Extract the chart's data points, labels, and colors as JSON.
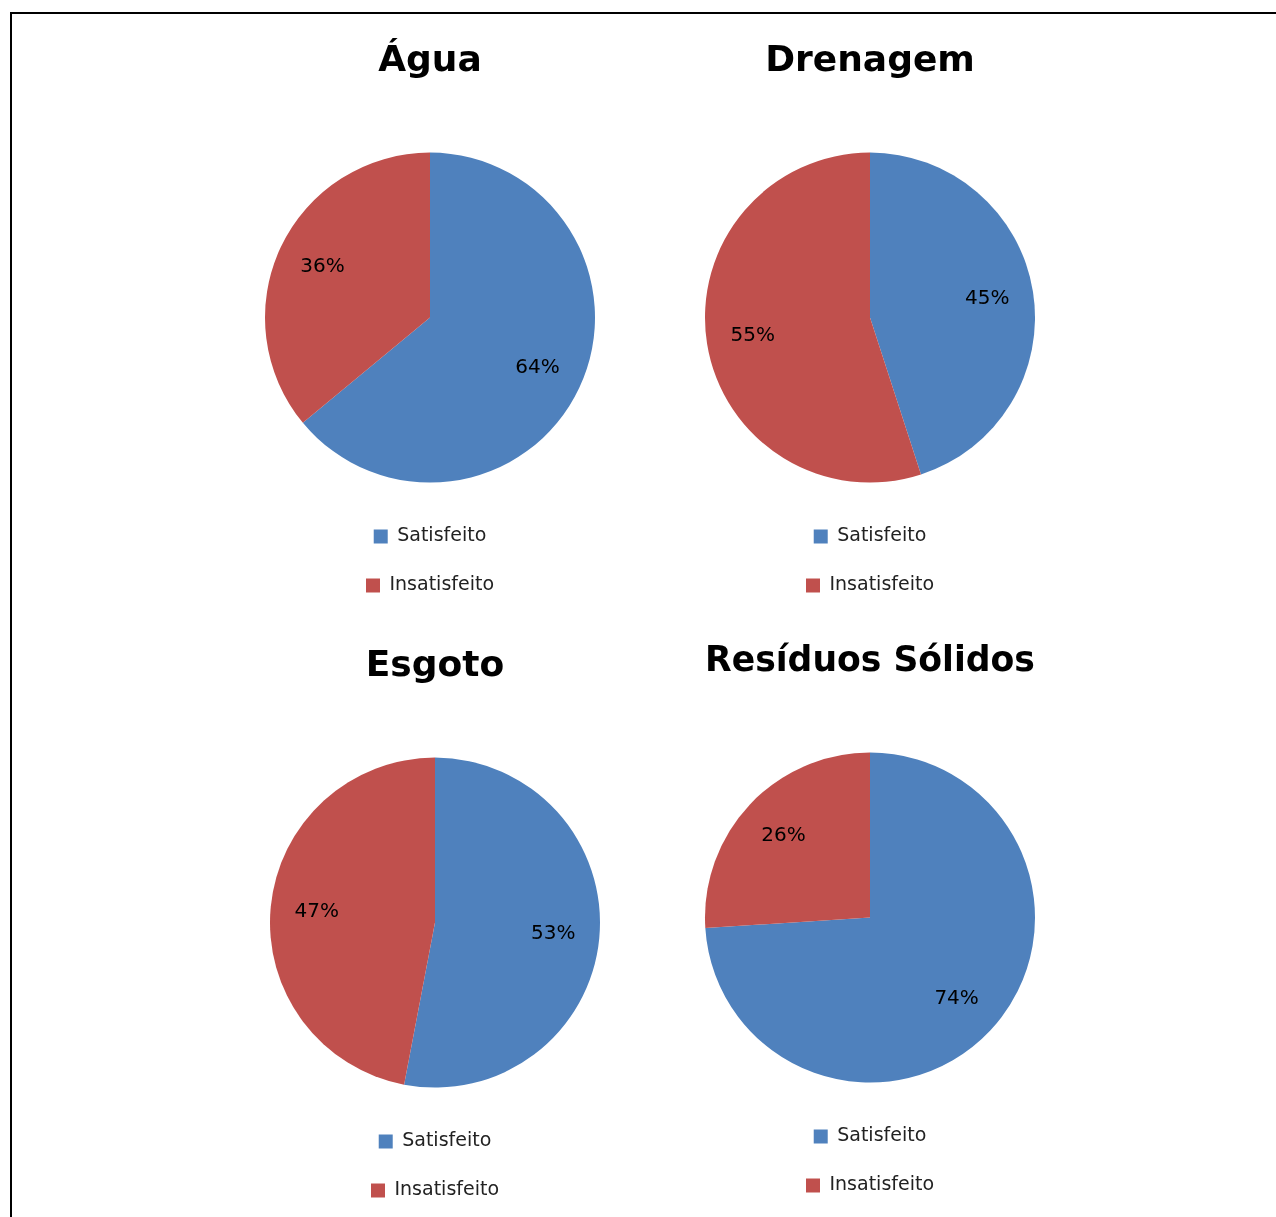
{
  "chart_data": [
    {
      "type": "pie",
      "title": "Água",
      "categories": [
        "Satisfeito",
        "Insatisfeito"
      ],
      "values": [
        64,
        36
      ],
      "value_labels": [
        "64%",
        "36%"
      ],
      "colors": [
        "#4f81bd",
        "#c0504d"
      ],
      "legend": "bottom"
    },
    {
      "type": "pie",
      "title": "Drenagem",
      "categories": [
        "Satisfeito",
        "Insatisfeito"
      ],
      "values": [
        45,
        55
      ],
      "value_labels": [
        "45%",
        "55%"
      ],
      "colors": [
        "#4f81bd",
        "#c0504d"
      ],
      "legend": "bottom"
    },
    {
      "type": "pie",
      "title": "Esgoto",
      "categories": [
        "Satisfeito",
        "Insatisfeito"
      ],
      "values": [
        53,
        47
      ],
      "value_labels": [
        "53%",
        "47%"
      ],
      "colors": [
        "#4f81bd",
        "#c0504d"
      ],
      "legend": "bottom"
    },
    {
      "type": "pie",
      "title": "Resíduos Sólidos",
      "categories": [
        "Satisfeito",
        "Insatisfeito"
      ],
      "values": [
        74,
        26
      ],
      "value_labels": [
        "74%",
        "26%"
      ],
      "colors": [
        "#4f81bd",
        "#c0504d"
      ],
      "legend": "bottom"
    }
  ]
}
